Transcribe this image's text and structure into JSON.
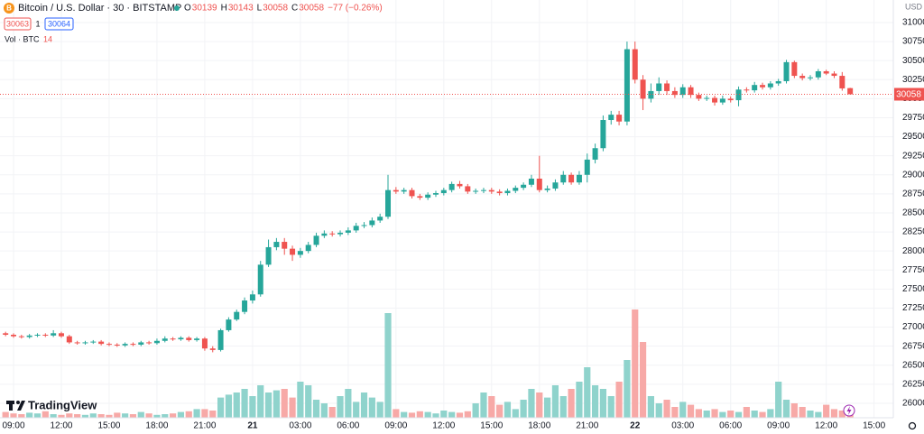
{
  "chart_data": {
    "type": "candlestick",
    "title": "Bitcoin / U.S. Dollar · 30 · BITSTAMP",
    "ohlc_labels": [
      "O",
      "H",
      "L",
      "C"
    ],
    "change_label": "−77 (−0.26%)",
    "bid": "30063",
    "spread": "1",
    "ask": "30064",
    "volume_label": "Vol · BTC",
    "currency": "USD",
    "brand": "TradingView",
    "up_color": "#26a69a",
    "down_color": "#ef5350",
    "volume_up_color": "#8fd3cc",
    "volume_down_color": "#f7a9a7",
    "grid": true,
    "ylim": [
      25810,
      31296
    ],
    "yticks": [
      26000,
      26250,
      26500,
      26750,
      27000,
      27250,
      27500,
      27750,
      28000,
      28250,
      28500,
      28750,
      29000,
      29250,
      29500,
      29750,
      30000,
      30250,
      30500,
      30750,
      31000
    ],
    "xticks": [
      {
        "value": 1,
        "label": "09:00"
      },
      {
        "value": 7,
        "label": "12:00"
      },
      {
        "value": 13,
        "label": "15:00"
      },
      {
        "value": 19,
        "label": "18:00"
      },
      {
        "value": 25,
        "label": "21:00"
      },
      {
        "value": 31,
        "label": "21"
      },
      {
        "value": 37,
        "label": "03:00"
      },
      {
        "value": 43,
        "label": "06:00"
      },
      {
        "value": 49,
        "label": "09:00"
      },
      {
        "value": 55,
        "label": "12:00"
      },
      {
        "value": 61,
        "label": "15:00"
      },
      {
        "value": 67,
        "label": "18:00"
      },
      {
        "value": 73,
        "label": "21:00"
      },
      {
        "value": 79,
        "label": "22"
      },
      {
        "value": 85,
        "label": "03:00"
      },
      {
        "value": 91,
        "label": "06:00"
      },
      {
        "value": 97,
        "label": "09:00"
      },
      {
        "value": 103,
        "label": "12:00"
      },
      {
        "value": 109,
        "label": "15:00"
      }
    ],
    "open": [
      26920,
      26900,
      26880,
      26870,
      26890,
      26900,
      26890,
      26920,
      26880,
      26800,
      26790,
      26800,
      26810,
      26780,
      26770,
      26760,
      26780,
      26770,
      26800,
      26790,
      26820,
      26850,
      26840,
      26860,
      26830,
      26850,
      26720,
      26700,
      26960,
      27100,
      27200,
      27350,
      27430,
      27820,
      28050,
      28120,
      28030,
      27950,
      28000,
      28080,
      28200,
      28230,
      28220,
      28240,
      28270,
      28330,
      28340,
      28400,
      28450,
      28800,
      28780,
      28800,
      28720,
      28700,
      28740,
      28760,
      28800,
      28880,
      28850,
      28780,
      28790,
      28800,
      28780,
      28760,
      28790,
      28830,
      28870,
      28950,
      28800,
      28820,
      28900,
      29000,
      28900,
      29000,
      29200,
      29350,
      29720,
      29790,
      29700,
      30650,
      30250,
      30000,
      30100,
      30200,
      30100,
      30050,
      30150,
      30050,
      30000,
      30010,
      29950,
      30000,
      29980,
      30120,
      30110,
      30180,
      30150,
      30200,
      30230,
      30480,
      30300,
      30270,
      30280,
      30360,
      30330,
      30300,
      30139
    ],
    "high": [
      26940,
      26920,
      26900,
      26910,
      26920,
      26920,
      26960,
      26940,
      26900,
      26820,
      26820,
      26830,
      26830,
      26800,
      26790,
      26800,
      26800,
      26820,
      26820,
      26850,
      26880,
      26870,
      26880,
      26880,
      26870,
      26870,
      26750,
      26980,
      27130,
      27230,
      27390,
      27480,
      27870,
      28150,
      28170,
      28170,
      28070,
      28040,
      28120,
      28240,
      28270,
      28260,
      28270,
      28310,
      28370,
      28380,
      28440,
      28490,
      29000,
      28840,
      28830,
      28830,
      28750,
      28770,
      28790,
      28830,
      28910,
      28920,
      28880,
      28820,
      28830,
      28830,
      28810,
      28820,
      28860,
      28900,
      29000,
      29250,
      28860,
      28940,
      29050,
      29030,
      29050,
      29280,
      29410,
      29780,
      29840,
      29840,
      30750,
      30750,
      30310,
      30200,
      30280,
      30240,
      30150,
      30190,
      30180,
      30080,
      30040,
      30040,
      30040,
      30030,
      30160,
      30150,
      30220,
      30210,
      30230,
      30260,
      30510,
      30500,
      30330,
      30310,
      30390,
      30380,
      30360,
      30350,
      30143
    ],
    "low": [
      26880,
      26860,
      26850,
      26850,
      26870,
      26870,
      26870,
      26860,
      26780,
      26770,
      26770,
      26780,
      26760,
      26750,
      26740,
      26740,
      26750,
      26750,
      26770,
      26770,
      26800,
      26820,
      26820,
      26810,
      26810,
      26690,
      26670,
      26680,
      26940,
      27080,
      27170,
      27310,
      27400,
      27790,
      28010,
      27950,
      27870,
      27910,
      27970,
      28050,
      28170,
      28190,
      28190,
      28210,
      28240,
      28300,
      28310,
      28370,
      28420,
      28750,
      28750,
      28690,
      28670,
      28670,
      28710,
      28730,
      28770,
      28820,
      28750,
      28750,
      28760,
      28750,
      28730,
      28730,
      28760,
      28800,
      28840,
      28770,
      28770,
      28790,
      28870,
      28870,
      28870,
      28900,
      29150,
      29310,
      29660,
      29650,
      29650,
      30200,
      29850,
      29950,
      30050,
      30050,
      30010,
      30010,
      30010,
      29970,
      29970,
      29910,
      29920,
      29950,
      29900,
      30080,
      30080,
      30120,
      30120,
      30170,
      30200,
      30270,
      30240,
      30240,
      30250,
      30310,
      30270,
      30105,
      30058
    ],
    "close": [
      26900,
      26880,
      26870,
      26890,
      26900,
      26890,
      26920,
      26880,
      26800,
      26790,
      26800,
      26810,
      26780,
      26770,
      26760,
      26780,
      26770,
      26800,
      26790,
      26820,
      26850,
      26840,
      26860,
      26830,
      26850,
      26720,
      26700,
      26960,
      27100,
      27200,
      27350,
      27430,
      27820,
      28050,
      28120,
      28030,
      27950,
      28000,
      28080,
      28200,
      28230,
      28220,
      28240,
      28270,
      28330,
      28340,
      28400,
      28450,
      28800,
      28780,
      28800,
      28720,
      28700,
      28740,
      28760,
      28800,
      28880,
      28850,
      28780,
      28790,
      28800,
      28780,
      28760,
      28790,
      28830,
      28870,
      28950,
      28800,
      28820,
      28900,
      29000,
      28900,
      29000,
      29200,
      29350,
      29720,
      29790,
      29700,
      30650,
      30250,
      30000,
      30100,
      30200,
      30100,
      30050,
      30150,
      30050,
      30000,
      30010,
      29950,
      30000,
      29980,
      30120,
      30110,
      30180,
      30150,
      30200,
      30230,
      30480,
      30300,
      30270,
      30280,
      30360,
      30330,
      30300,
      30135,
      30058
    ],
    "volume": [
      8,
      6,
      5,
      7,
      6,
      9,
      5,
      4,
      6,
      5,
      4,
      6,
      5,
      4,
      7,
      6,
      5,
      8,
      6,
      4,
      5,
      6,
      8,
      9,
      12,
      12,
      10,
      28,
      32,
      35,
      40,
      30,
      45,
      35,
      38,
      40,
      28,
      50,
      45,
      25,
      20,
      15,
      30,
      40,
      22,
      35,
      28,
      22,
      145,
      12,
      8,
      7,
      9,
      8,
      6,
      10,
      8,
      7,
      9,
      20,
      35,
      30,
      18,
      22,
      12,
      25,
      40,
      35,
      28,
      45,
      30,
      40,
      50,
      70,
      45,
      40,
      30,
      50,
      80,
      150,
      105,
      30,
      20,
      25,
      15,
      22,
      18,
      12,
      10,
      12,
      8,
      10,
      8,
      15,
      10,
      8,
      12,
      50,
      25,
      20,
      15,
      10,
      8,
      18,
      12,
      10,
      14
    ]
  }
}
